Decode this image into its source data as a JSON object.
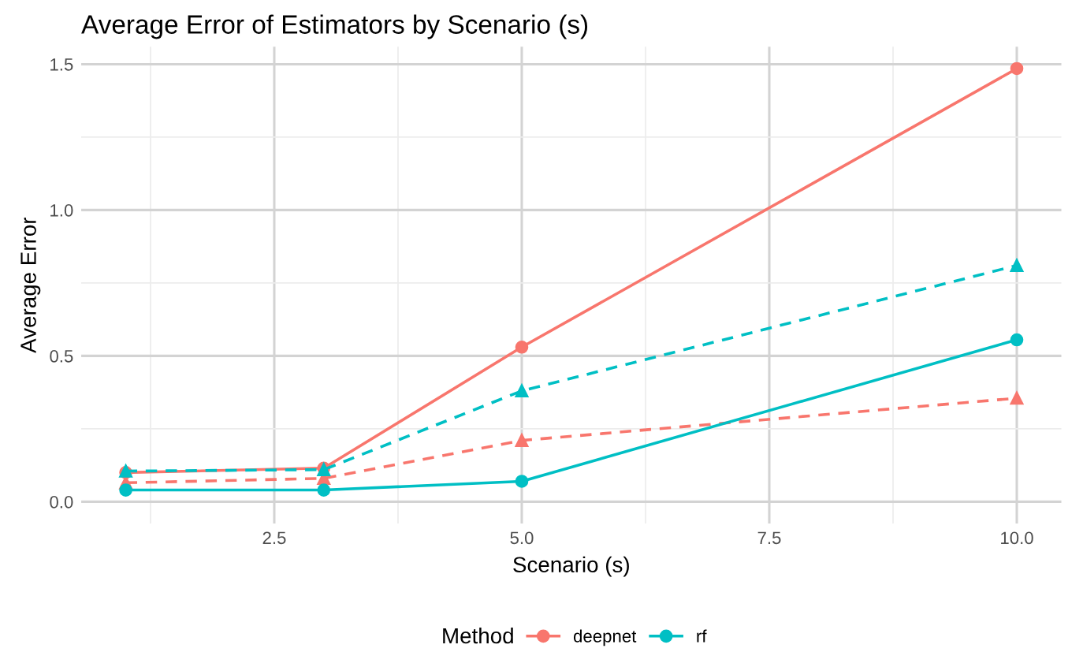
{
  "chart_data": {
    "type": "line",
    "title": "Average Error of Estimators by Scenario (s)",
    "xlabel": "Scenario (s)",
    "ylabel": "Average Error",
    "legend_title": "Method",
    "series": [
      {
        "name": "deepnet",
        "color": "#f8766d",
        "x": [
          1,
          3,
          5,
          10
        ],
        "values": [
          0.1,
          0.115,
          0.53,
          1.485
        ],
        "marker": "circle",
        "line_style": "solid"
      },
      {
        "color": "#f8766d",
        "x": [
          1,
          3,
          5,
          10
        ],
        "values": [
          0.065,
          0.08,
          0.21,
          0.355
        ],
        "marker": "triangle",
        "line_style": "dashed"
      },
      {
        "name": "rf",
        "color": "#00bfc4",
        "x": [
          1,
          3,
          5,
          10
        ],
        "values": [
          0.04,
          0.04,
          0.07,
          0.555
        ],
        "marker": "circle",
        "line_style": "solid"
      },
      {
        "color": "#00bfc4",
        "x": [
          1,
          3,
          5,
          10
        ],
        "values": [
          0.105,
          0.11,
          0.38,
          0.81
        ],
        "marker": "triangle",
        "line_style": "dashed"
      }
    ],
    "xlim": [
      0.55,
      10.45
    ],
    "xticks": [
      {
        "value": 2.5,
        "label": "2.5"
      },
      {
        "value": 5,
        "label": "5.0"
      },
      {
        "value": 7.5,
        "label": "7.5"
      },
      {
        "value": 10,
        "label": "10.0"
      }
    ],
    "ylim": [
      -0.075,
      1.56
    ],
    "yticks": [
      {
        "value": 0,
        "label": "0.0"
      },
      {
        "value": 0.5,
        "label": "0.5"
      },
      {
        "value": 1,
        "label": "1.0"
      },
      {
        "value": 1.5,
        "label": "1.5"
      }
    ],
    "grid": true,
    "legend": "bottom"
  }
}
